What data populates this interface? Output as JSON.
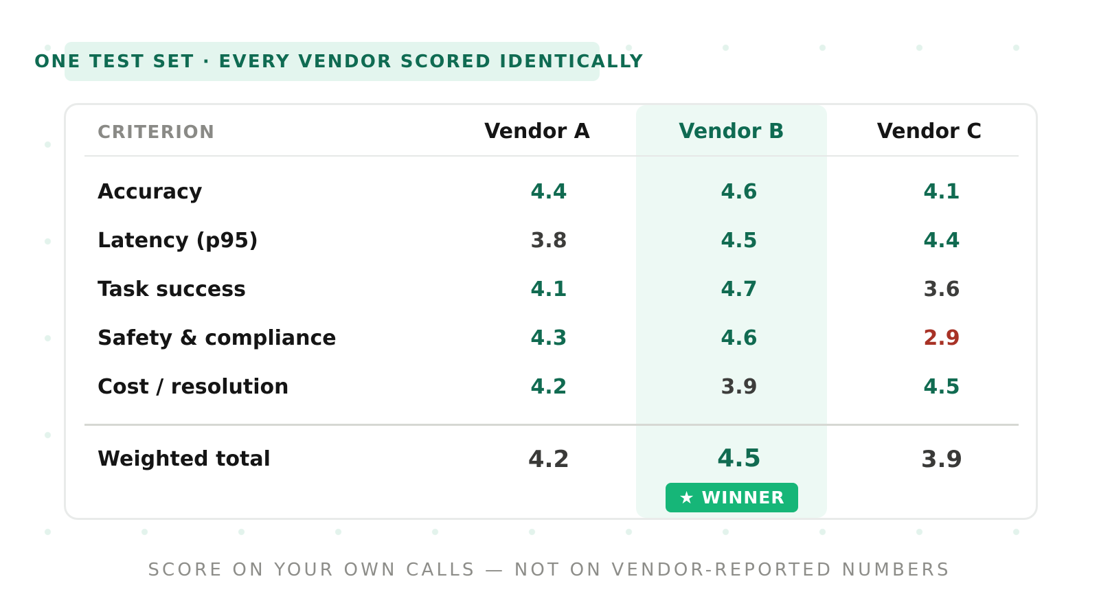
{
  "kicker": "ONE TEST SET · EVERY VENDOR SCORED IDENTICALLY",
  "table": {
    "criterion_header": "CRITERION",
    "vendors": [
      "Vendor A",
      "Vendor B",
      "Vendor C"
    ],
    "winner_vendor": "Vendor B",
    "rows": [
      {
        "label": "Accuracy",
        "scores": [
          "4.4",
          "4.6",
          "4.1"
        ],
        "status": [
          "good",
          "good",
          "good"
        ]
      },
      {
        "label": "Latency (p95)",
        "scores": [
          "3.8",
          "4.5",
          "4.4"
        ],
        "status": [
          "mid",
          "good",
          "good"
        ]
      },
      {
        "label": "Task success",
        "scores": [
          "4.1",
          "4.7",
          "3.6"
        ],
        "status": [
          "good",
          "good",
          "mid"
        ]
      },
      {
        "label": "Safety & compliance",
        "scores": [
          "4.3",
          "4.6",
          "2.9"
        ],
        "status": [
          "good",
          "good",
          "bad"
        ]
      },
      {
        "label": "Cost / resolution",
        "scores": [
          "4.2",
          "3.9",
          "4.5"
        ],
        "status": [
          "good",
          "mid",
          "good"
        ]
      }
    ],
    "total": {
      "label": "Weighted total",
      "scores": [
        "4.2",
        "4.5",
        "3.9"
      ]
    },
    "badge": "★ WINNER"
  },
  "footer": "SCORE ON YOUR OWN CALLS — NOT ON VENDOR-REPORTED NUMBERS",
  "colors": {
    "accent": "#0f6b52",
    "good": "#116b51",
    "neutral": "#3d3d3b",
    "bad": "#a83226",
    "badge": "#16b678",
    "highlight": "#edf9f4"
  }
}
